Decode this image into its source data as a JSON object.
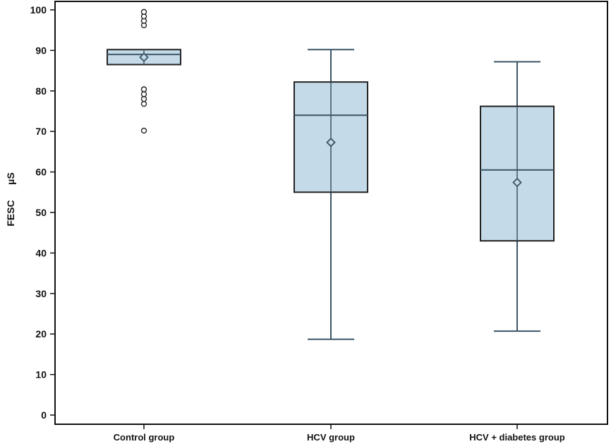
{
  "chart_data": {
    "type": "boxplot",
    "ylabel_unit": "µS",
    "ylabel": "FESC",
    "ylim": [
      0,
      100
    ],
    "yticks": [
      0,
      10,
      20,
      30,
      40,
      50,
      60,
      70,
      80,
      90,
      100
    ],
    "grid": false,
    "colors": {
      "box_fill": "#c5dae8",
      "box_stroke": "#222222",
      "whisker": "#3a5566",
      "axis": "#111111"
    },
    "categories": [
      "Control group",
      "HCV group",
      "HCV + diabetes group"
    ],
    "boxes": [
      {
        "category": "Control group",
        "whisker_low": 86.5,
        "q1": 86.5,
        "median": 89,
        "q3": 90.2,
        "whisker_high": 90.2,
        "mean": 88.3,
        "outliers": [
          70.2,
          76.8,
          78.0,
          79.2,
          80.4,
          96.2,
          97.3,
          98.4,
          99.5
        ]
      },
      {
        "category": "HCV group",
        "whisker_low": 18.7,
        "q1": 55,
        "median": 74,
        "q3": 82.2,
        "whisker_high": 90.2,
        "mean": 67.3,
        "outliers": []
      },
      {
        "category": "HCV + diabetes group",
        "whisker_low": 20.7,
        "q1": 43,
        "median": 60.5,
        "q3": 76.2,
        "whisker_high": 87.2,
        "mean": 57.4,
        "outliers": []
      }
    ]
  }
}
